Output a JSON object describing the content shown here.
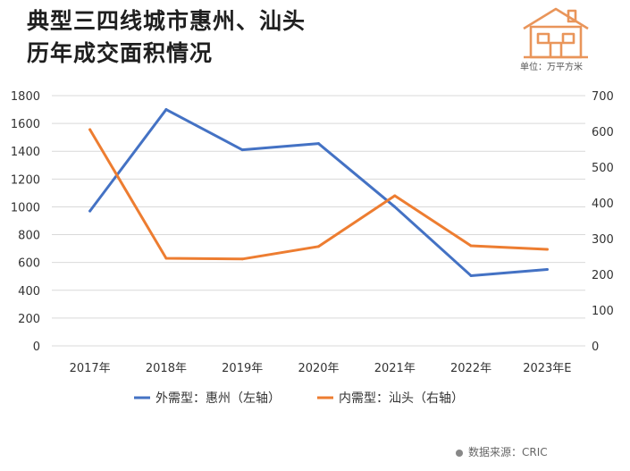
{
  "header": {
    "title_line1": "典型三四线城市惠州、汕头",
    "title_line2": "历年成交面积情况",
    "unit": "单位：万平方米"
  },
  "source": {
    "text": "数据来源：CRIC"
  },
  "colors": {
    "huizhou": "#4472C4",
    "shantou": "#ED7D31",
    "grid": "#d9d9d9",
    "logo": "#E9955A"
  },
  "logo": {
    "icon": "house-icon"
  },
  "chart_data": {
    "type": "line",
    "title": "典型三四线城市惠州、汕头历年成交面积情况",
    "categories": [
      "2017年",
      "2018年",
      "2019年",
      "2020年",
      "2021年",
      "2022年",
      "2023年E"
    ],
    "y_left": {
      "min": 0,
      "max": 1800,
      "step": 200,
      "ticks": [
        "0",
        "200",
        "400",
        "600",
        "800",
        "1000",
        "1200",
        "1400",
        "1600",
        "1800"
      ]
    },
    "y_right": {
      "min": 0,
      "max": 700,
      "step": 100,
      "ticks": [
        "0",
        "100",
        "200",
        "300",
        "400",
        "500",
        "600",
        "700"
      ]
    },
    "series": [
      {
        "name": "外需型：惠州（左轴）",
        "axis": "left",
        "values": [
          970,
          1700,
          1410,
          1455,
          1000,
          505,
          550
        ]
      },
      {
        "name": "内需型：汕头（右轴）",
        "axis": "right",
        "values": [
          605,
          245,
          243,
          278,
          420,
          280,
          270
        ]
      }
    ],
    "legend": "bottom",
    "grid": true
  }
}
